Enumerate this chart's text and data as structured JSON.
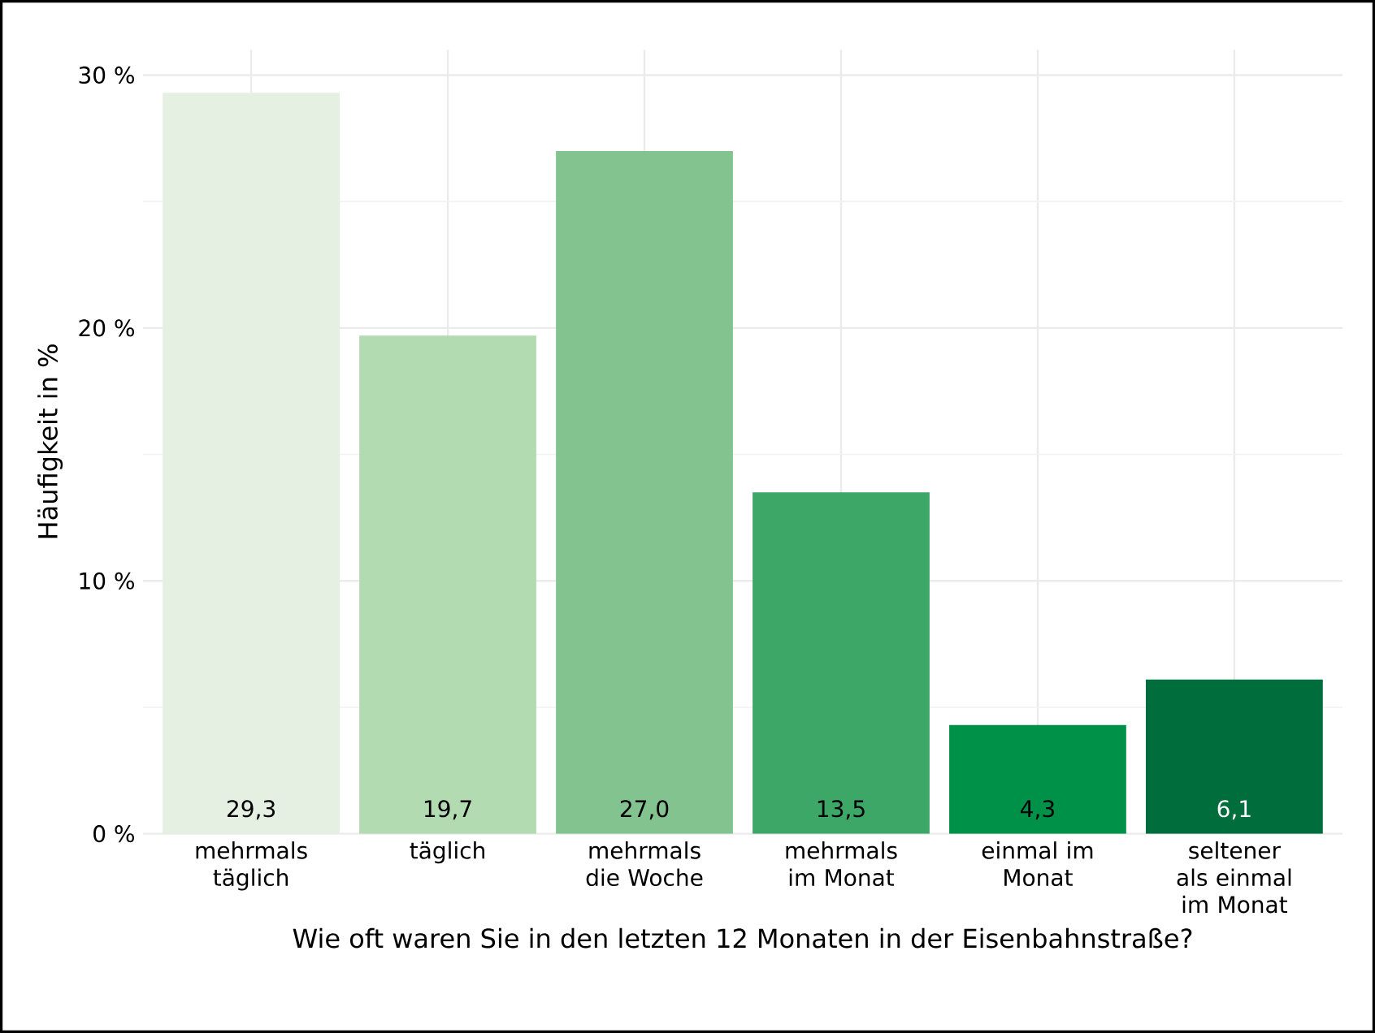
{
  "chart_data": {
    "type": "bar",
    "xlabel": "Wie oft waren Sie in den letzten 12 Monaten in der Eisenbahnstraße?",
    "ylabel": "Häufigkeit in %",
    "categories": [
      "mehrmals täglich",
      "täglich",
      "mehrmals die Woche",
      "mehrmals im Monat",
      "einmal im Monat",
      "seltener als einmal im Monat"
    ],
    "values": [
      29.3,
      19.7,
      27.0,
      13.5,
      4.3,
      6.1
    ],
    "value_labels": [
      "29,3",
      "19,7",
      "27,0",
      "13,5",
      "4,3",
      "6,1"
    ],
    "colors": [
      "#e5f0e2",
      "#b3dbb1",
      "#82c38f",
      "#3ca766",
      "#009148",
      "#006e3c"
    ],
    "ylim": [
      0,
      31
    ],
    "yticks": [
      {
        "value": 0,
        "label": "0 %"
      },
      {
        "value": 10,
        "label": "10 %"
      },
      {
        "value": 20,
        "label": "20 %"
      },
      {
        "value": 30,
        "label": "30 %"
      }
    ],
    "grid": true
  }
}
